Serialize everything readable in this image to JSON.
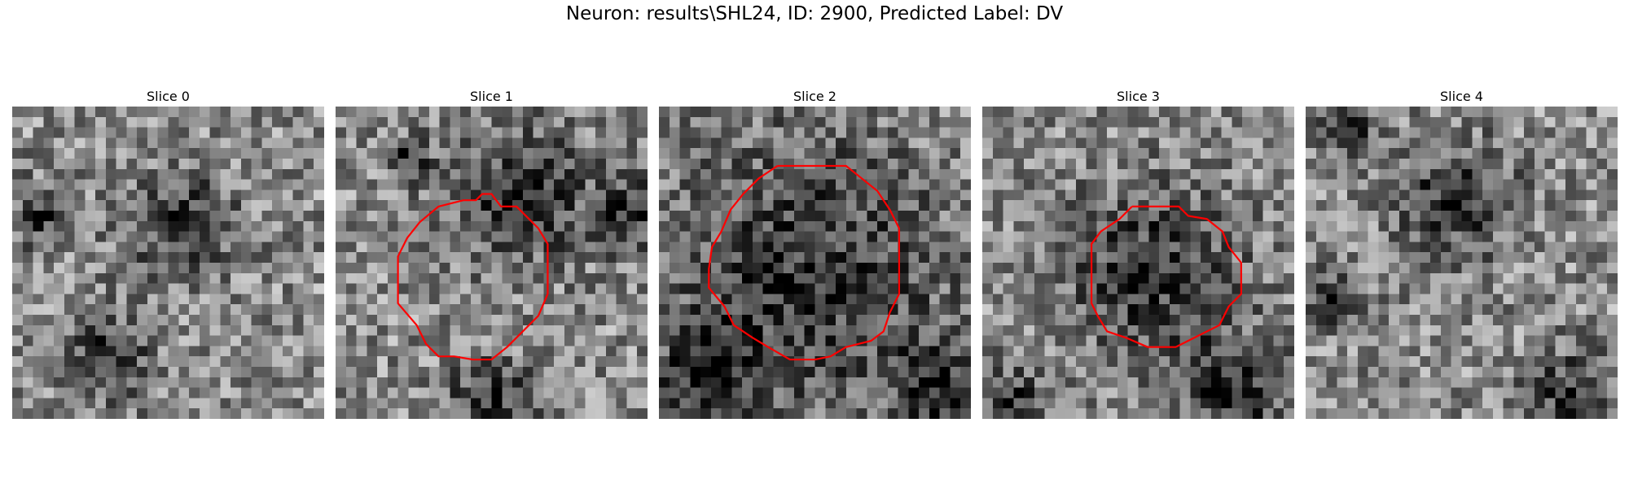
{
  "title": "Neuron: results\\SHL24, ID: 2900, Predicted Label: DV",
  "colormap": "gray",
  "contour_color": "#ff0000",
  "slices": [
    {
      "label": "Slice 0",
      "has_contour": false,
      "seed": 11,
      "dark_blobs": [
        [
          0.55,
          0.38,
          0.12
        ],
        [
          0.3,
          0.8,
          0.1
        ],
        [
          0.1,
          0.35,
          0.07
        ]
      ]
    },
    {
      "label": "Slice 1",
      "has_contour": true,
      "seed": 23,
      "dark_blobs": [
        [
          0.23,
          0.17,
          0.05
        ],
        [
          0.6,
          0.28,
          0.16
        ],
        [
          0.5,
          0.95,
          0.1
        ],
        [
          0.95,
          0.35,
          0.08
        ]
      ],
      "contour_points": [
        [
          0.41,
          0.3
        ],
        [
          0.45,
          0.3
        ],
        [
          0.47,
          0.28
        ],
        [
          0.5,
          0.28
        ],
        [
          0.53,
          0.32
        ],
        [
          0.58,
          0.32
        ],
        [
          0.61,
          0.35
        ],
        [
          0.65,
          0.39
        ],
        [
          0.68,
          0.44
        ],
        [
          0.68,
          0.6
        ],
        [
          0.65,
          0.67
        ],
        [
          0.6,
          0.72
        ],
        [
          0.55,
          0.77
        ],
        [
          0.5,
          0.81
        ],
        [
          0.44,
          0.81
        ],
        [
          0.38,
          0.8
        ],
        [
          0.33,
          0.8
        ],
        [
          0.29,
          0.76
        ],
        [
          0.26,
          0.7
        ],
        [
          0.2,
          0.63
        ],
        [
          0.2,
          0.48
        ],
        [
          0.23,
          0.42
        ],
        [
          0.27,
          0.37
        ],
        [
          0.33,
          0.32
        ],
        [
          0.41,
          0.3
        ]
      ]
    },
    {
      "label": "Slice 2",
      "has_contour": true,
      "seed": 37,
      "dark_blobs": [
        [
          0.47,
          0.55,
          0.33
        ],
        [
          0.15,
          0.85,
          0.1
        ],
        [
          0.9,
          0.9,
          0.1
        ]
      ],
      "contour_points": [
        [
          0.38,
          0.19
        ],
        [
          0.6,
          0.19
        ],
        [
          0.65,
          0.23
        ],
        [
          0.7,
          0.27
        ],
        [
          0.74,
          0.33
        ],
        [
          0.77,
          0.39
        ],
        [
          0.77,
          0.55
        ],
        [
          0.77,
          0.6
        ],
        [
          0.74,
          0.66
        ],
        [
          0.72,
          0.72
        ],
        [
          0.68,
          0.75
        ],
        [
          0.6,
          0.77
        ],
        [
          0.55,
          0.8
        ],
        [
          0.5,
          0.81
        ],
        [
          0.42,
          0.81
        ],
        [
          0.35,
          0.77
        ],
        [
          0.3,
          0.74
        ],
        [
          0.24,
          0.7
        ],
        [
          0.21,
          0.64
        ],
        [
          0.16,
          0.58
        ],
        [
          0.16,
          0.52
        ],
        [
          0.17,
          0.45
        ],
        [
          0.2,
          0.4
        ],
        [
          0.23,
          0.33
        ],
        [
          0.27,
          0.28
        ],
        [
          0.32,
          0.23
        ],
        [
          0.38,
          0.19
        ]
      ]
    },
    {
      "label": "Slice 3",
      "has_contour": true,
      "seed": 53,
      "dark_blobs": [
        [
          0.55,
          0.53,
          0.2
        ],
        [
          0.8,
          0.92,
          0.12
        ],
        [
          0.1,
          0.95,
          0.08
        ]
      ],
      "contour_points": [
        [
          0.48,
          0.32
        ],
        [
          0.63,
          0.32
        ],
        [
          0.66,
          0.35
        ],
        [
          0.72,
          0.36
        ],
        [
          0.77,
          0.4
        ],
        [
          0.79,
          0.45
        ],
        [
          0.83,
          0.5
        ],
        [
          0.83,
          0.6
        ],
        [
          0.79,
          0.64
        ],
        [
          0.76,
          0.7
        ],
        [
          0.7,
          0.73
        ],
        [
          0.62,
          0.77
        ],
        [
          0.53,
          0.77
        ],
        [
          0.46,
          0.74
        ],
        [
          0.4,
          0.72
        ],
        [
          0.37,
          0.67
        ],
        [
          0.35,
          0.63
        ],
        [
          0.35,
          0.44
        ],
        [
          0.38,
          0.4
        ],
        [
          0.44,
          0.36
        ],
        [
          0.48,
          0.32
        ]
      ]
    },
    {
      "label": "Slice 4",
      "has_contour": false,
      "seed": 71,
      "dark_blobs": [
        [
          0.48,
          0.3,
          0.13
        ],
        [
          0.1,
          0.63,
          0.07
        ],
        [
          0.85,
          0.93,
          0.1
        ],
        [
          0.14,
          0.05,
          0.06
        ]
      ]
    }
  ]
}
